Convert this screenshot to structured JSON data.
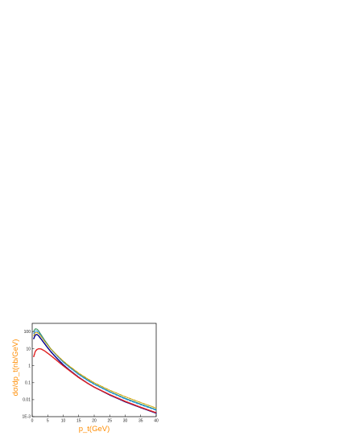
{
  "chart_data": {
    "type": "line",
    "title": "",
    "xlabel": "p_t(GeV)",
    "ylabel": "dσ/dp_t(nb/GeV)",
    "xlim": [
      0,
      40
    ],
    "ylim_log10": [
      -3,
      2.5
    ],
    "yscale": "log",
    "x_ticks": [
      "0",
      "5",
      "10",
      "15",
      "20",
      "25",
      "30",
      "35",
      "40"
    ],
    "y_ticks": [
      {
        "value": 0.001,
        "label": "1E-3"
      },
      {
        "value": 0.01,
        "label": "0.01"
      },
      {
        "value": 0.1,
        "label": "0.1"
      },
      {
        "value": 1,
        "label": "1"
      },
      {
        "value": 10,
        "label": "10"
      },
      {
        "value": 100,
        "label": "100"
      }
    ],
    "label_color": "#ff8c00",
    "grid": false,
    "legend": "none",
    "series": [
      {
        "color": "#2e8b57",
        "style": "solid",
        "x": [
          0.5,
          1,
          1.5,
          2,
          2.5,
          3,
          4,
          5,
          6,
          8,
          10,
          12,
          15,
          18,
          20,
          25,
          30,
          35,
          40
        ],
        "y": [
          110,
          150,
          145,
          120,
          85,
          62,
          32,
          18,
          10,
          4.0,
          1.7,
          0.85,
          0.32,
          0.14,
          0.085,
          0.03,
          0.012,
          0.0055,
          0.0026
        ]
      },
      {
        "color": "#1e90ff",
        "style": "dash",
        "x": [
          0.5,
          1,
          1.5,
          2,
          2.5,
          3,
          4,
          5,
          6,
          8,
          10,
          12,
          15,
          18,
          20,
          25,
          30,
          35,
          40
        ],
        "y": [
          80,
          115,
          112,
          95,
          72,
          55,
          29,
          17,
          9.5,
          3.8,
          1.6,
          0.8,
          0.3,
          0.13,
          0.08,
          0.028,
          0.011,
          0.005,
          0.0024
        ]
      },
      {
        "color": "#c8a000",
        "style": "dashdot",
        "x": [
          0.5,
          1,
          1.5,
          2,
          2.5,
          3,
          4,
          5,
          6,
          8,
          10,
          12,
          15,
          18,
          20,
          25,
          30,
          35,
          40
        ],
        "y": [
          60,
          90,
          92,
          82,
          64,
          50,
          28,
          16.5,
          9.8,
          4.2,
          1.9,
          0.95,
          0.37,
          0.165,
          0.1,
          0.036,
          0.015,
          0.0068,
          0.0032
        ]
      },
      {
        "color": "#00008b",
        "style": "dot",
        "x": [
          0.5,
          1,
          1.5,
          2,
          2.5,
          3,
          4,
          5,
          6,
          8,
          10,
          12,
          15,
          18,
          20,
          25,
          30,
          35,
          40
        ],
        "y": [
          40,
          65,
          70,
          60,
          46,
          35,
          20,
          11.5,
          6.8,
          2.7,
          1.15,
          0.56,
          0.21,
          0.09,
          0.055,
          0.019,
          0.0075,
          0.0034,
          0.0016
        ]
      },
      {
        "color": "#e02020",
        "style": "dot",
        "x": [
          0.5,
          1,
          1.5,
          2,
          2.5,
          3,
          4,
          5,
          6,
          8,
          10,
          12,
          15,
          18,
          20,
          25,
          30,
          35,
          40
        ],
        "y": [
          3.5,
          7,
          9,
          10,
          10,
          9.5,
          7.5,
          5.5,
          4.0,
          2.0,
          1.0,
          0.52,
          0.2,
          0.09,
          0.055,
          0.02,
          0.008,
          0.0036,
          0.0017
        ]
      }
    ]
  }
}
